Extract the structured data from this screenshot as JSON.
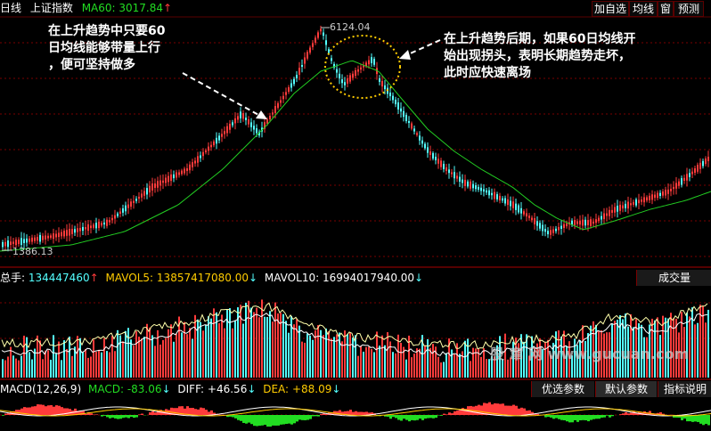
{
  "header": {
    "period": "日线",
    "index_name": "上证指数",
    "ma_label": "MA60:",
    "ma_value": "3017.84",
    "ma_arrow": "↑",
    "buttons": [
      "加自选",
      "均线",
      "窗",
      "预测"
    ]
  },
  "price_chart": {
    "high_label": "6124.04",
    "low_label": "1386.13",
    "annotation_left": "在上升趋势中只要60\n日均线能够带量上行\n，便可坚持做多",
    "annotation_right": "在上升趋势后期，如果60日均线开\n始出现拐头，表明长期趋势走坏，\n此时应快速离场"
  },
  "volume_panel": {
    "label": "总手:",
    "value": "134447460",
    "value_arrow": "↑",
    "mavol5_label": "MAVOL5:",
    "mavol5_value": "13857417080.00",
    "mavol5_arrow": "↓",
    "mavol10_label": "MAVOL10:",
    "mavol10_value": "16994017940.00",
    "mavol10_arrow": "↓",
    "dropdown": "成交量",
    "watermark": "股 窜 网 www.gucuan.com"
  },
  "macd_panel": {
    "label": "MACD(12,26,9)",
    "macd_label": "MACD:",
    "macd_value": "-83.06",
    "macd_arrow": "↓",
    "diff_label": "DIFF:",
    "diff_value": "+46.56",
    "diff_arrow": "↓",
    "dea_label": "DEA:",
    "dea_value": "+88.09",
    "dea_arrow": "↓",
    "tabs": [
      "优选参数",
      "默认参数",
      "指标说明"
    ]
  },
  "colors": {
    "up": "#ff3b3b",
    "down": "#54ffff",
    "ma60": "#22cc22",
    "macd_neg": "#22dd22",
    "ellipse": "#ffcc00",
    "grid": "#7a0000"
  }
}
